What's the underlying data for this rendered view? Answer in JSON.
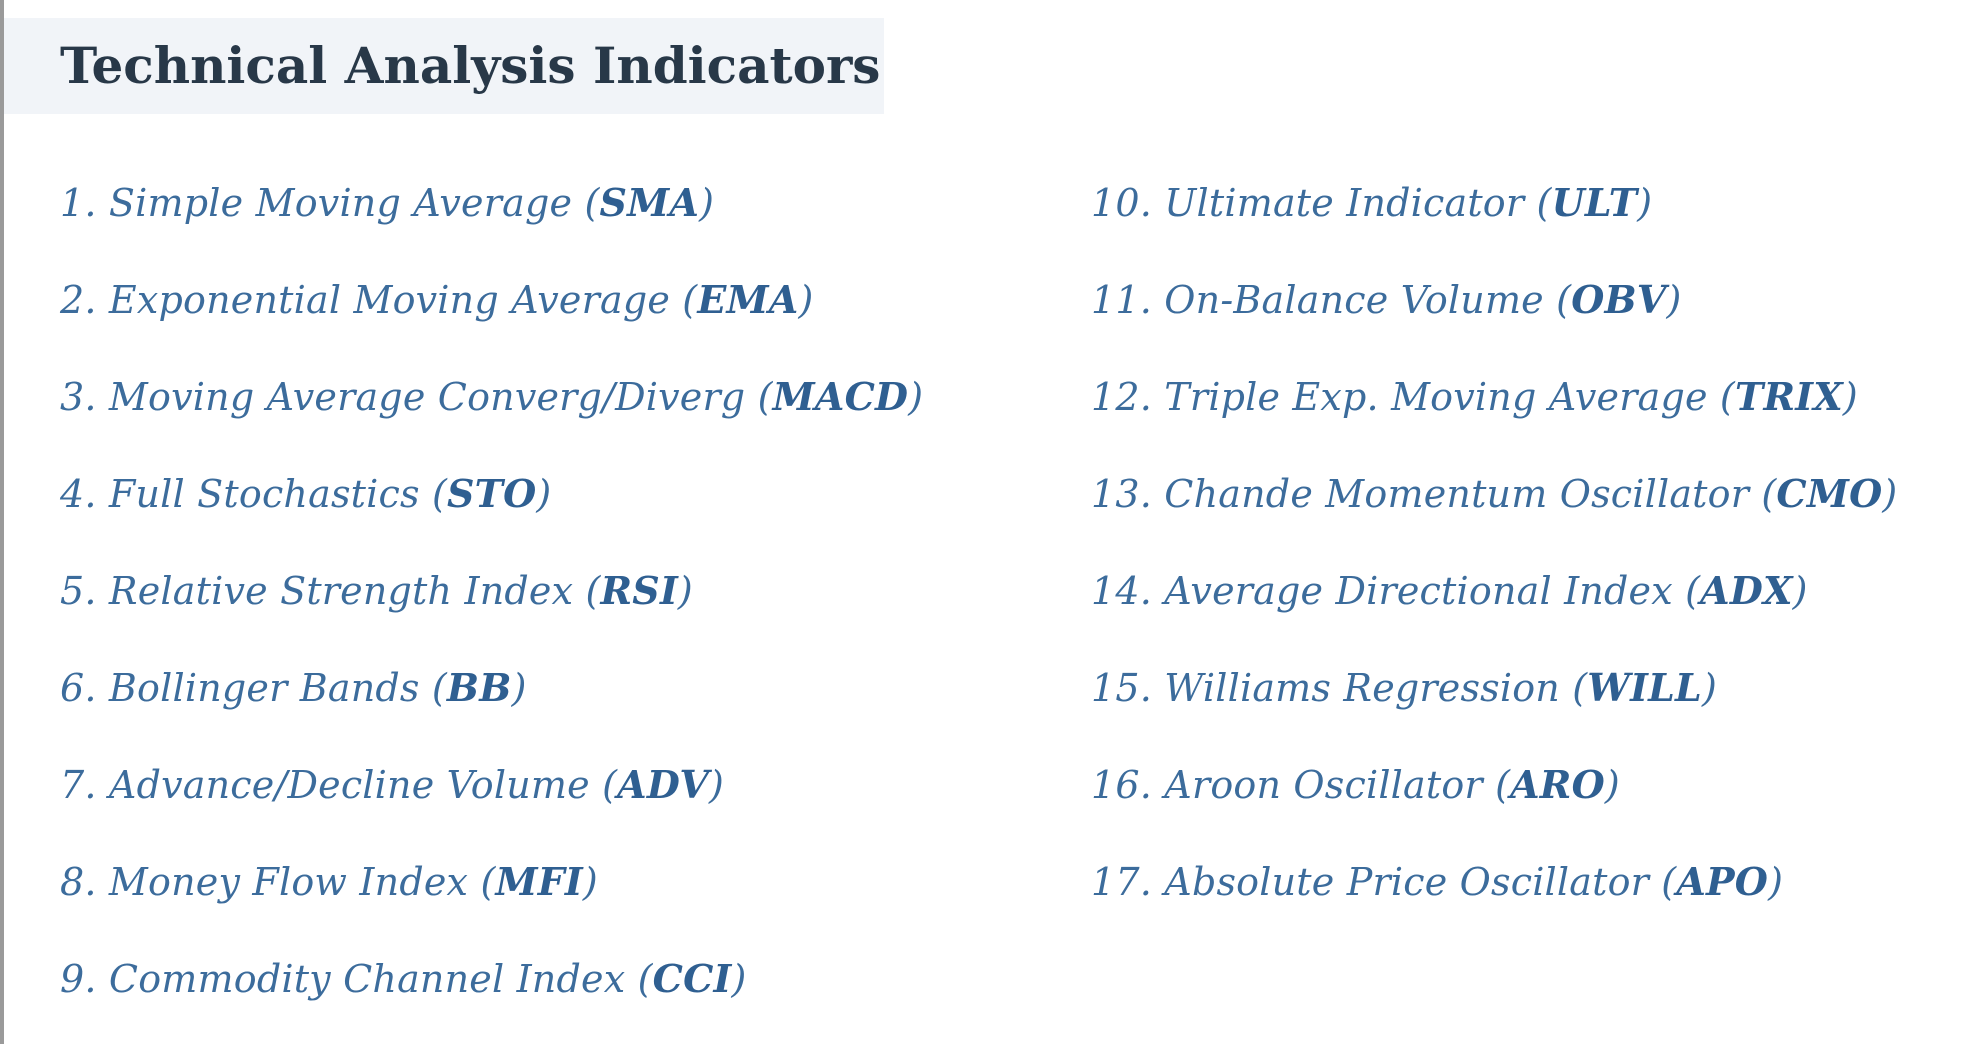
{
  "title": "Technical Analysis Indicators",
  "left_items": [
    {
      "text": "1. Simple Moving Average (",
      "abbr": "SMA",
      "close": ")"
    },
    {
      "text": "2. Exponential Moving Average (",
      "abbr": "EMA",
      "close": ")"
    },
    {
      "text": "3. Moving Average Converg/Diverg (",
      "abbr": "MACD",
      "close": ")"
    },
    {
      "text": "4. Full Stochastics (",
      "abbr": "STO",
      "close": ")"
    },
    {
      "text": "5. Relative Strength Index (",
      "abbr": "RSI",
      "close": ")"
    },
    {
      "text": "6. Bollinger Bands (",
      "abbr": "BB",
      "close": ")"
    },
    {
      "text": "7. Advance/Decline Volume (",
      "abbr": "ADV",
      "close": ")"
    },
    {
      "text": "8. Money Flow Index (",
      "abbr": "MFI",
      "close": ")"
    },
    {
      "text": "9. Commodity Channel Index (",
      "abbr": "CCI",
      "close": ")"
    }
  ],
  "right_items": [
    {
      "text": "10. Ultimate Indicator (",
      "abbr": "ULT",
      "close": ")"
    },
    {
      "text": "11. On-Balance Volume (",
      "abbr": "OBV",
      "close": ")"
    },
    {
      "text": "12. Triple Exp. Moving Average (",
      "abbr": "TRIX",
      "close": ")"
    },
    {
      "text": "13. Chande Momentum Oscillator (",
      "abbr": "CMO",
      "close": ")"
    },
    {
      "text": "14. Average Directional Index (",
      "abbr": "ADX",
      "close": ")"
    },
    {
      "text": "15. Williams Regression (",
      "abbr": "WILL",
      "close": ")"
    },
    {
      "text": "16. Aroon Oscillator (",
      "abbr": "ARO",
      "close": ")"
    },
    {
      "text": "17. Absolute Price Oscillator (",
      "abbr": "APO",
      "close": ")"
    }
  ]
}
